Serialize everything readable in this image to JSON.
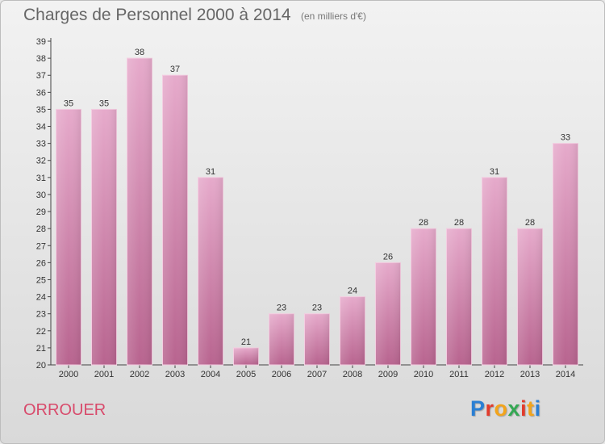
{
  "header": {
    "title": "Charges de Personnel 2000 à 2014",
    "subtitle": "(en milliers d'€)"
  },
  "footer": {
    "commune": "ORROUER",
    "logo_text": "Proxiti",
    "logo_colors": [
      "#2a7fd4",
      "#e23b2c",
      "#f2a41c",
      "#34a853",
      "#e23b2c",
      "#f2a41c",
      "#2a7fd4"
    ]
  },
  "colors": {
    "bar": "#d38aae",
    "bar_top": "#eab4cf",
    "bar_bottom": "#c06a98",
    "axis_text": "#333333",
    "title": "#666666",
    "commune": "#d84a6b"
  },
  "chart_data": {
    "type": "bar",
    "title": "Charges de Personnel 2000 à 2014",
    "subtitle": "(en milliers d'€)",
    "xlabel": "",
    "ylabel": "",
    "categories": [
      "2000",
      "2001",
      "2002",
      "2003",
      "2004",
      "2005",
      "2006",
      "2007",
      "2008",
      "2009",
      "2010",
      "2011",
      "2012",
      "2013",
      "2014"
    ],
    "values": [
      35,
      35,
      38,
      37,
      31,
      21,
      23,
      23,
      24,
      26,
      28,
      28,
      31,
      28,
      33
    ],
    "ylim": [
      20,
      39
    ],
    "yticks": [
      20,
      21,
      22,
      23,
      24,
      25,
      26,
      27,
      28,
      29,
      30,
      31,
      32,
      33,
      34,
      35,
      36,
      37,
      38,
      39
    ],
    "grid": false,
    "data_labels": true
  }
}
